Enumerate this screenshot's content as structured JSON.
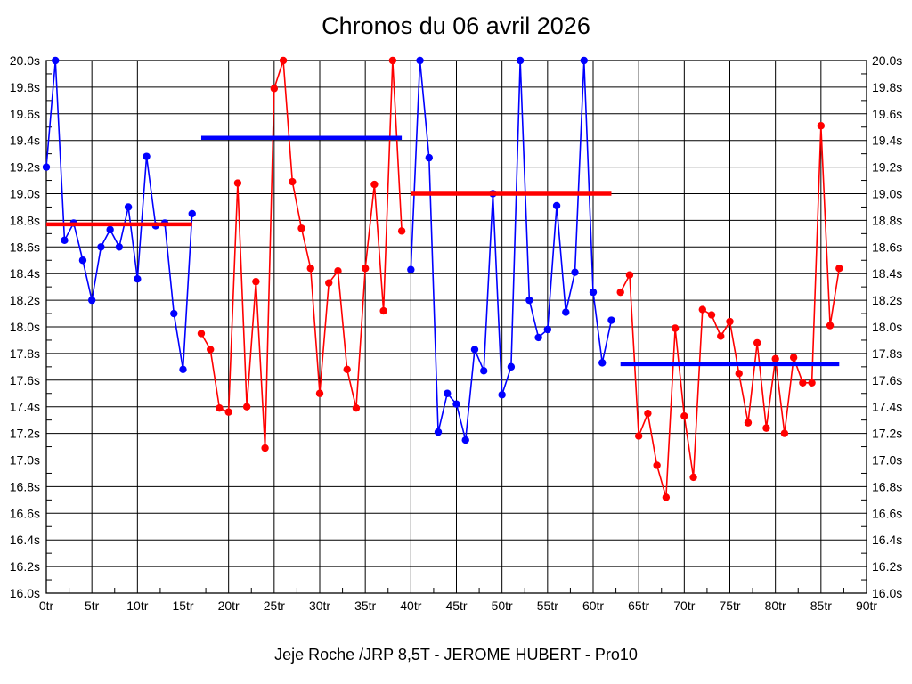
{
  "chart_data": {
    "type": "line",
    "title": "Chronos du 06 avril 2026",
    "subtitle": "Jeje Roche /JRP 8,5T - JEROME HUBERT - Pro10",
    "grid": true,
    "legend": "none",
    "colors": {
      "blue": "#0000ff",
      "red": "#ff0000",
      "grid": "#000000",
      "text": "#000000",
      "background": "#ffffff"
    },
    "x_axis": {
      "min": 0,
      "max": 90,
      "major_step": 5,
      "minor_step": 2.5,
      "unit": "tr",
      "tick_labels": [
        "0tr",
        "5tr",
        "10tr",
        "15tr",
        "20tr",
        "25tr",
        "30tr",
        "35tr",
        "40tr",
        "45tr",
        "50tr",
        "55tr",
        "60tr",
        "65tr",
        "70tr",
        "75tr",
        "80tr",
        "85tr",
        "90tr"
      ]
    },
    "y_axis": {
      "min": 16.0,
      "max": 20.0,
      "major_step": 0.2,
      "minor_step": 0.1,
      "unit": "s",
      "labels_on_both_sides": true,
      "tick_labels": [
        "20.0s",
        "19.8s",
        "19.6s",
        "19.4s",
        "19.2s",
        "19.0s",
        "18.8s",
        "18.6s",
        "18.4s",
        "18.2s",
        "18.0s",
        "17.8s",
        "17.6s",
        "17.4s",
        "17.2s",
        "17.0s",
        "16.8s",
        "16.6s",
        "16.4s",
        "16.2s",
        "16.0s"
      ]
    },
    "series": [
      {
        "name": "stint-1-blue",
        "color": "#0000ff",
        "points": [
          [
            0,
            19.2
          ],
          [
            1,
            20.0
          ],
          [
            2,
            18.65
          ],
          [
            3,
            18.78
          ],
          [
            4,
            18.5
          ],
          [
            5,
            18.2
          ],
          [
            6,
            18.6
          ],
          [
            7,
            18.73
          ],
          [
            8,
            18.6
          ],
          [
            9,
            18.9
          ],
          [
            10,
            18.36
          ],
          [
            11,
            19.28
          ],
          [
            12,
            18.76
          ],
          [
            13,
            18.78
          ],
          [
            14,
            18.1
          ],
          [
            15,
            17.68
          ],
          [
            16,
            18.85
          ]
        ]
      },
      {
        "name": "stint-2-red",
        "color": "#ff0000",
        "points": [
          [
            17,
            17.95
          ],
          [
            18,
            17.83
          ],
          [
            19,
            17.39
          ],
          [
            20,
            17.36
          ],
          [
            21,
            19.08
          ],
          [
            22,
            17.4
          ],
          [
            23,
            18.34
          ],
          [
            24,
            17.09
          ],
          [
            25,
            19.79
          ],
          [
            26,
            20.0
          ],
          [
            27,
            19.09
          ],
          [
            28,
            18.74
          ],
          [
            29,
            18.44
          ],
          [
            30,
            17.5
          ],
          [
            31,
            18.33
          ],
          [
            32,
            18.42
          ],
          [
            33,
            17.68
          ],
          [
            34,
            17.39
          ],
          [
            35,
            18.44
          ],
          [
            36,
            19.07
          ],
          [
            37,
            18.12
          ],
          [
            38,
            20.0
          ],
          [
            39,
            18.72
          ]
        ]
      },
      {
        "name": "stint-3-blue",
        "color": "#0000ff",
        "points": [
          [
            40,
            18.43
          ],
          [
            41,
            20.0
          ],
          [
            42,
            19.27
          ],
          [
            43,
            17.21
          ],
          [
            44,
            17.5
          ],
          [
            45,
            17.42
          ],
          [
            46,
            17.15
          ],
          [
            47,
            17.83
          ],
          [
            48,
            17.67
          ],
          [
            49,
            19.0
          ],
          [
            50,
            17.49
          ],
          [
            51,
            17.7
          ],
          [
            52,
            20.0
          ],
          [
            53,
            18.2
          ],
          [
            54,
            17.92
          ],
          [
            55,
            17.98
          ],
          [
            56,
            18.91
          ],
          [
            57,
            18.11
          ],
          [
            58,
            18.41
          ],
          [
            59,
            20.0
          ],
          [
            60,
            18.26
          ],
          [
            61,
            17.73
          ],
          [
            62,
            18.05
          ]
        ]
      },
      {
        "name": "stint-4-red",
        "color": "#ff0000",
        "points": [
          [
            63,
            18.26
          ],
          [
            64,
            18.39
          ],
          [
            65,
            17.18
          ],
          [
            66,
            17.35
          ],
          [
            67,
            16.96
          ],
          [
            68,
            16.72
          ],
          [
            69,
            17.99
          ],
          [
            70,
            17.33
          ],
          [
            71,
            16.87
          ],
          [
            72,
            18.13
          ],
          [
            73,
            18.09
          ],
          [
            74,
            17.93
          ],
          [
            75,
            18.04
          ],
          [
            76,
            17.65
          ],
          [
            77,
            17.28
          ],
          [
            78,
            17.88
          ],
          [
            79,
            17.24
          ],
          [
            80,
            17.76
          ],
          [
            81,
            17.2
          ],
          [
            82,
            17.77
          ],
          [
            83,
            17.58
          ],
          [
            84,
            17.58
          ],
          [
            85,
            19.51
          ],
          [
            86,
            18.01
          ],
          [
            87,
            18.44
          ]
        ]
      }
    ],
    "average_lines": [
      {
        "name": "stint-1-reference",
        "color": "#ff0000",
        "value": 18.77,
        "x_start": 0,
        "x_end": 16
      },
      {
        "name": "stint-2-reference",
        "color": "#0000ff",
        "value": 19.42,
        "x_start": 17,
        "x_end": 39
      },
      {
        "name": "stint-3-reference",
        "color": "#ff0000",
        "value": 19.0,
        "x_start": 40,
        "x_end": 62
      },
      {
        "name": "stint-4-reference",
        "color": "#0000ff",
        "value": 17.72,
        "x_start": 63,
        "x_end": 87
      }
    ]
  }
}
